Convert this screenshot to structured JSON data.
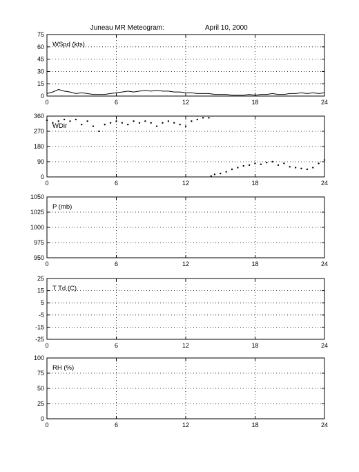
{
  "figure": {
    "title_station": "Juneau MR Meteogram:",
    "title_date": "April 10, 2000"
  },
  "chart_data": [
    {
      "id": "wspd",
      "type": "line",
      "panel_label": "WSpd (kts)",
      "xlim": [
        0,
        24
      ],
      "xticks": [
        0,
        6,
        12,
        18,
        24
      ],
      "ylim": [
        0,
        75
      ],
      "yticks": [
        0,
        15,
        30,
        45,
        60,
        75
      ],
      "grid": true,
      "series": [
        {
          "x": [
            0,
            0.5,
            1,
            1.5,
            2,
            2.5,
            3,
            3.5,
            4,
            4.5,
            5,
            5.5,
            6,
            6.5,
            7,
            7.5,
            8,
            8.5,
            9,
            9.5,
            10,
            10.5,
            11,
            11.5,
            12,
            12.5,
            13,
            13.5,
            14,
            14.5,
            15,
            15.5,
            16,
            16.5,
            17,
            17.5,
            18,
            18.5,
            19,
            19.5,
            20,
            20.5,
            21,
            21.5,
            22,
            22.5,
            23,
            23.5,
            24
          ],
          "y": [
            3,
            5,
            8,
            6,
            5,
            3,
            4,
            3,
            2,
            2,
            2,
            3,
            4,
            5,
            6,
            5,
            6,
            7,
            6,
            7,
            6,
            6,
            5,
            5,
            4,
            4,
            3,
            3,
            3,
            2,
            2,
            2,
            1,
            1,
            1,
            2,
            1,
            2,
            2,
            3,
            2,
            2,
            3,
            3,
            4,
            3,
            4,
            3,
            4
          ]
        }
      ]
    },
    {
      "id": "wdir",
      "type": "scatter",
      "panel_label": "WDir",
      "xlim": [
        0,
        24
      ],
      "xticks": [
        0,
        6,
        12,
        18,
        24
      ],
      "ylim": [
        0,
        360
      ],
      "yticks": [
        0,
        90,
        180,
        270,
        360
      ],
      "grid": true,
      "series": [
        {
          "x": [
            0,
            0.5,
            1,
            1.5,
            2,
            2.5,
            3,
            3.5,
            4,
            4.5,
            5,
            5.5,
            6,
            6.5,
            7,
            7.5,
            8,
            8.5,
            9,
            9.5,
            10,
            10.5,
            11,
            11.5,
            12,
            12.5,
            13,
            13.5,
            14,
            14.2,
            14.5,
            15,
            15.5,
            16,
            16.5,
            17,
            17.5,
            18,
            18.5,
            19,
            19.5,
            20,
            20.5,
            21,
            21.5,
            22,
            22.5,
            23,
            23.5,
            24
          ],
          "y": [
            335,
            320,
            330,
            340,
            330,
            340,
            310,
            330,
            300,
            270,
            310,
            320,
            330,
            320,
            310,
            330,
            320,
            330,
            320,
            300,
            320,
            330,
            320,
            310,
            300,
            330,
            340,
            350,
            350,
            5,
            15,
            20,
            30,
            45,
            55,
            65,
            70,
            80,
            75,
            85,
            90,
            70,
            80,
            60,
            55,
            50,
            45,
            55,
            80,
            100
          ]
        }
      ]
    },
    {
      "id": "pres",
      "type": "line",
      "panel_label": "P (mb)",
      "xlim": [
        0,
        24
      ],
      "xticks": [
        0,
        6,
        12,
        18,
        24
      ],
      "ylim": [
        950,
        1050
      ],
      "yticks": [
        950,
        975,
        1000,
        1025,
        1050
      ],
      "grid": true,
      "series": []
    },
    {
      "id": "temp",
      "type": "line",
      "panel_label": "T Td (C)",
      "xlim": [
        0,
        24
      ],
      "xticks": [
        0,
        6,
        12,
        18,
        24
      ],
      "ylim": [
        -25,
        25
      ],
      "yticks": [
        -25,
        -15,
        -5,
        5,
        15,
        25
      ],
      "grid": true,
      "series": []
    },
    {
      "id": "rh",
      "type": "line",
      "panel_label": "RH (%)",
      "xlim": [
        0,
        24
      ],
      "xticks": [
        0,
        6,
        12,
        18,
        24
      ],
      "ylim": [
        0,
        100
      ],
      "yticks": [
        0,
        25,
        50,
        75,
        100
      ],
      "grid": true,
      "series": []
    }
  ]
}
